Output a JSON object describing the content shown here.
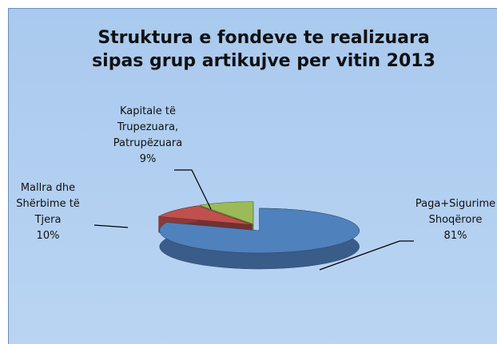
{
  "chart_data": {
    "type": "pie",
    "title": "Struktura  e fondeve te realizuara sipas grup artikujve  per vitin 2013",
    "categories": [
      "Paga+Sigurime Shoqërore",
      "Mallra dhe Shërbime të Tjera",
      "Kapitale të Trupezuara, Patrupëzuara"
    ],
    "values": [
      81,
      10,
      9
    ],
    "value_labels": [
      "81%",
      "10%",
      "9%"
    ],
    "colors": [
      "#4f81bd",
      "#c0504d",
      "#9bbb59"
    ]
  }
}
